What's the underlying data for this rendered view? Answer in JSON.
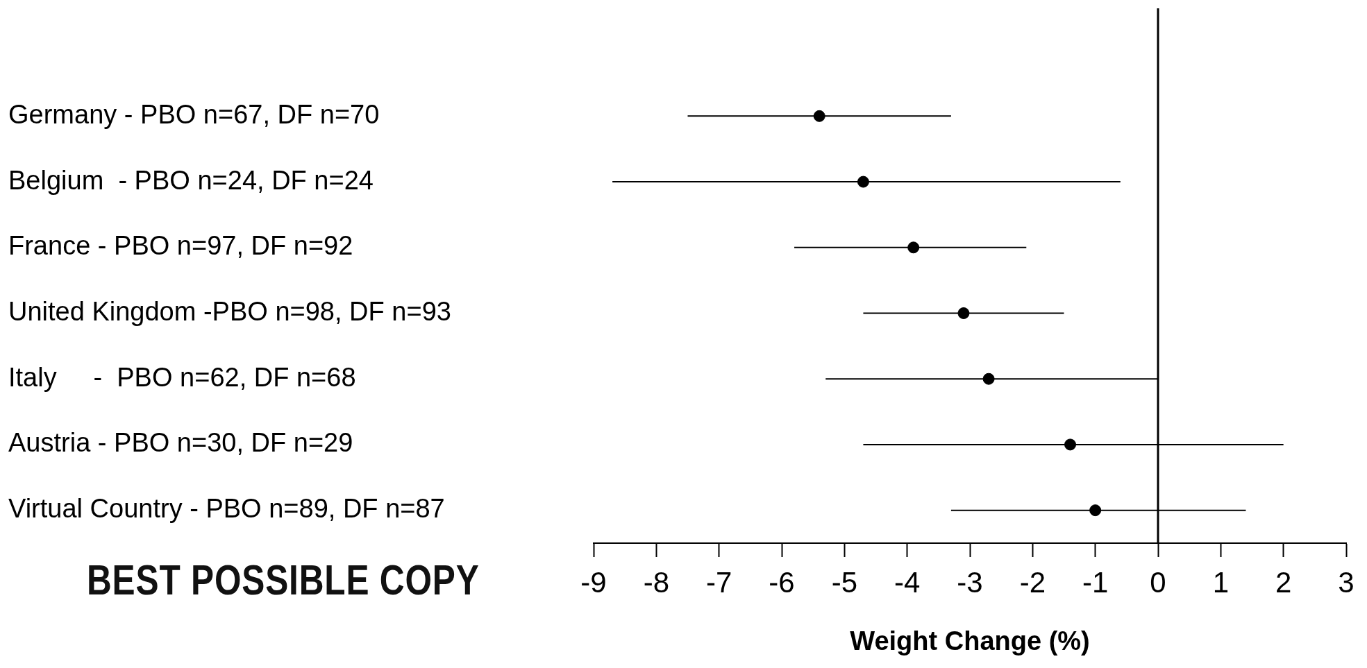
{
  "chart_data": {
    "type": "scatter",
    "xlabel": "Weight Change (%)",
    "categories": [
      "Germany - PBO n=67, DF n=70",
      "Belgium  - PBO n=24, DF n=24",
      "France - PBO n=97, DF n=92",
      "United Kingdom -PBO n=98, DF n=93",
      "Italy     -  PBO n=62, DF n=68",
      "Austria - PBO n=30, DF n=29",
      "Virtual Country - PBO n=89, DF n=87"
    ],
    "series": [
      {
        "color": "#000000",
        "values": [
          -5.4,
          -4.7,
          -3.9,
          -3.1,
          -2.7,
          -1.4,
          -1.0
        ],
        "errors": [
          [
            -7.5,
            -3.3
          ],
          [
            -8.7,
            -0.6
          ],
          [
            -5.8,
            -2.1
          ],
          [
            -4.7,
            -1.5
          ],
          [
            -5.3,
            0.0
          ],
          [
            -4.7,
            2.0
          ],
          [
            -3.3,
            1.4
          ]
        ]
      }
    ],
    "orientation": "horizontal",
    "marker": "circle",
    "xlim": [
      -9,
      3
    ],
    "xticks": [
      -9,
      -8,
      -7,
      -6,
      -5,
      -4,
      -3,
      -2,
      -1,
      0,
      1,
      2,
      3
    ],
    "grid": false,
    "legend": false,
    "ref_lines": [
      {
        "axis": "x",
        "value": 0,
        "color": "#000000"
      }
    ],
    "annotations": [
      "BEST POSSIBLE COPY"
    ]
  }
}
